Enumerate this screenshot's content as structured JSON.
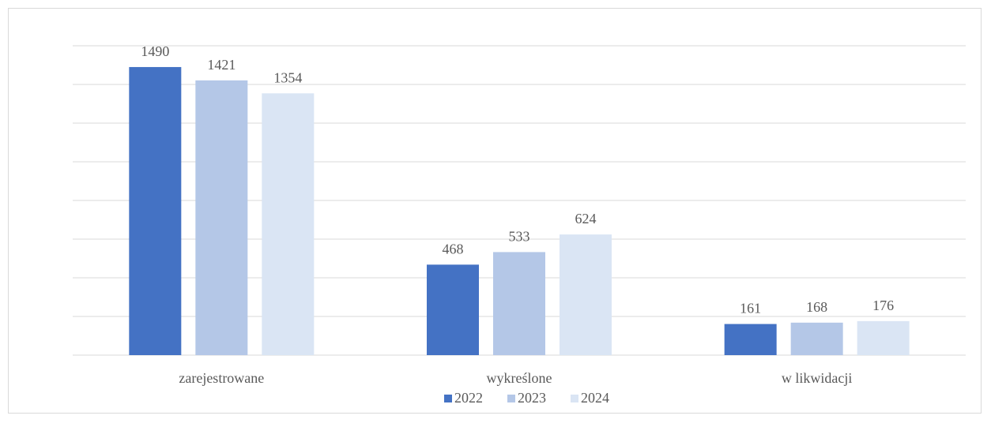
{
  "chart_data": {
    "type": "bar",
    "categories": [
      "zarejestrowane",
      "wykreślone",
      "w likwidacji"
    ],
    "series": [
      {
        "name": "2022",
        "values": [
          1490,
          468,
          161
        ],
        "color": "#4472c4"
      },
      {
        "name": "2023",
        "values": [
          1421,
          533,
          168
        ],
        "color": "#b4c7e7"
      },
      {
        "name": "2024",
        "values": [
          1354,
          624,
          176
        ],
        "color": "#dae5f4"
      }
    ],
    "ylim": [
      0,
      1600
    ],
    "y_gridline_step": 200,
    "grid": true,
    "y_tick_labels_shown": false,
    "data_labels": true,
    "legend": "bottom"
  }
}
